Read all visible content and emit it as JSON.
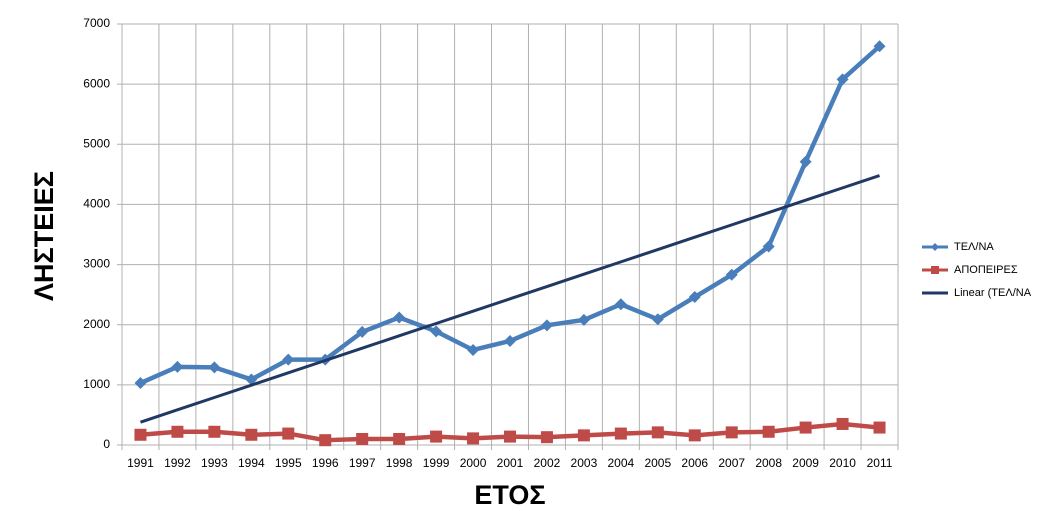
{
  "chart_data": {
    "type": "line",
    "x_label": "ΕΤΟΣ",
    "y_label": "ΛΗΣΤΕΙΕΣ",
    "categories": [
      "1991",
      "1992",
      "1993",
      "1994",
      "1995",
      "1996",
      "1997",
      "1998",
      "1999",
      "2000",
      "2001",
      "2002",
      "2003",
      "2004",
      "2005",
      "2006",
      "2007",
      "2008",
      "2009",
      "2010",
      "2011"
    ],
    "series": [
      {
        "name": "ΤΕΛ/ΝΑ",
        "color": "#4a7ebb",
        "marker": "diamond",
        "values": [
          1030,
          1300,
          1290,
          1090,
          1420,
          1420,
          1880,
          2120,
          1890,
          1580,
          1730,
          1990,
          2080,
          2340,
          2090,
          2460,
          2830,
          3300,
          4710,
          6080,
          6630
        ]
      },
      {
        "name": "ΑΠΟΠΕΙΡΕΣ",
        "color": "#be4b48",
        "marker": "square",
        "values": [
          170,
          220,
          220,
          170,
          190,
          80,
          100,
          100,
          140,
          110,
          140,
          130,
          160,
          190,
          210,
          160,
          210,
          220,
          290,
          350,
          290
        ]
      },
      {
        "name": "Linear (ΤΕΛ/ΝΑ",
        "color": "#1f3864",
        "marker": "none",
        "values": [
          380,
          585,
          790,
          995,
          1200,
          1405,
          1610,
          1815,
          2020,
          2225,
          2430,
          2635,
          2840,
          3045,
          3250,
          3455,
          3660,
          3865,
          4070,
          4275,
          4480
        ]
      }
    ],
    "ylim": [
      0,
      7000
    ],
    "yticks": [
      0,
      1000,
      2000,
      3000,
      4000,
      5000,
      6000,
      7000
    ],
    "grid": true,
    "legend": "right"
  }
}
